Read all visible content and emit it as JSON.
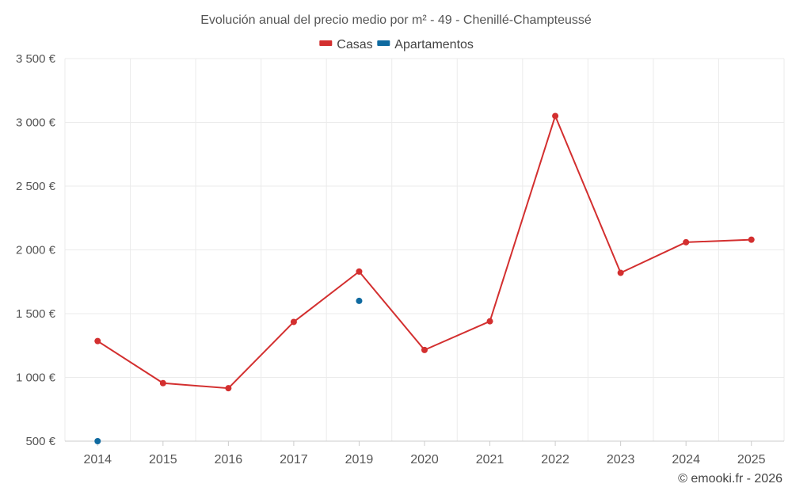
{
  "chart_data": {
    "type": "line",
    "title": "Evolución anual del precio medio por m² - 49 - Chenillé-Champteussé",
    "categories": [
      "2014",
      "2015",
      "2016",
      "2017",
      "2019",
      "2020",
      "2021",
      "2022",
      "2023",
      "2024",
      "2025"
    ],
    "series": [
      {
        "name": "Casas",
        "color": "#d32f2f",
        "values": [
          1285,
          955,
          915,
          1435,
          1830,
          1215,
          1440,
          3050,
          1820,
          2060,
          2080
        ]
      },
      {
        "name": "Apartamentos",
        "color": "#0f6aa0",
        "values": [
          500,
          null,
          null,
          null,
          1600,
          null,
          null,
          null,
          null,
          null,
          null
        ]
      }
    ],
    "ylim": [
      500,
      3500
    ],
    "yticks": [
      500,
      1000,
      1500,
      2000,
      2500,
      3000,
      3500
    ],
    "ytick_labels": [
      "500 €",
      "1 000 €",
      "1 500 €",
      "2 000 €",
      "2 500 €",
      "3 000 €",
      "3 500 €"
    ],
    "grid": true,
    "legend_position": "top-center",
    "xlabel": "",
    "ylabel": ""
  },
  "credit": "© emooki.fr - 2026"
}
